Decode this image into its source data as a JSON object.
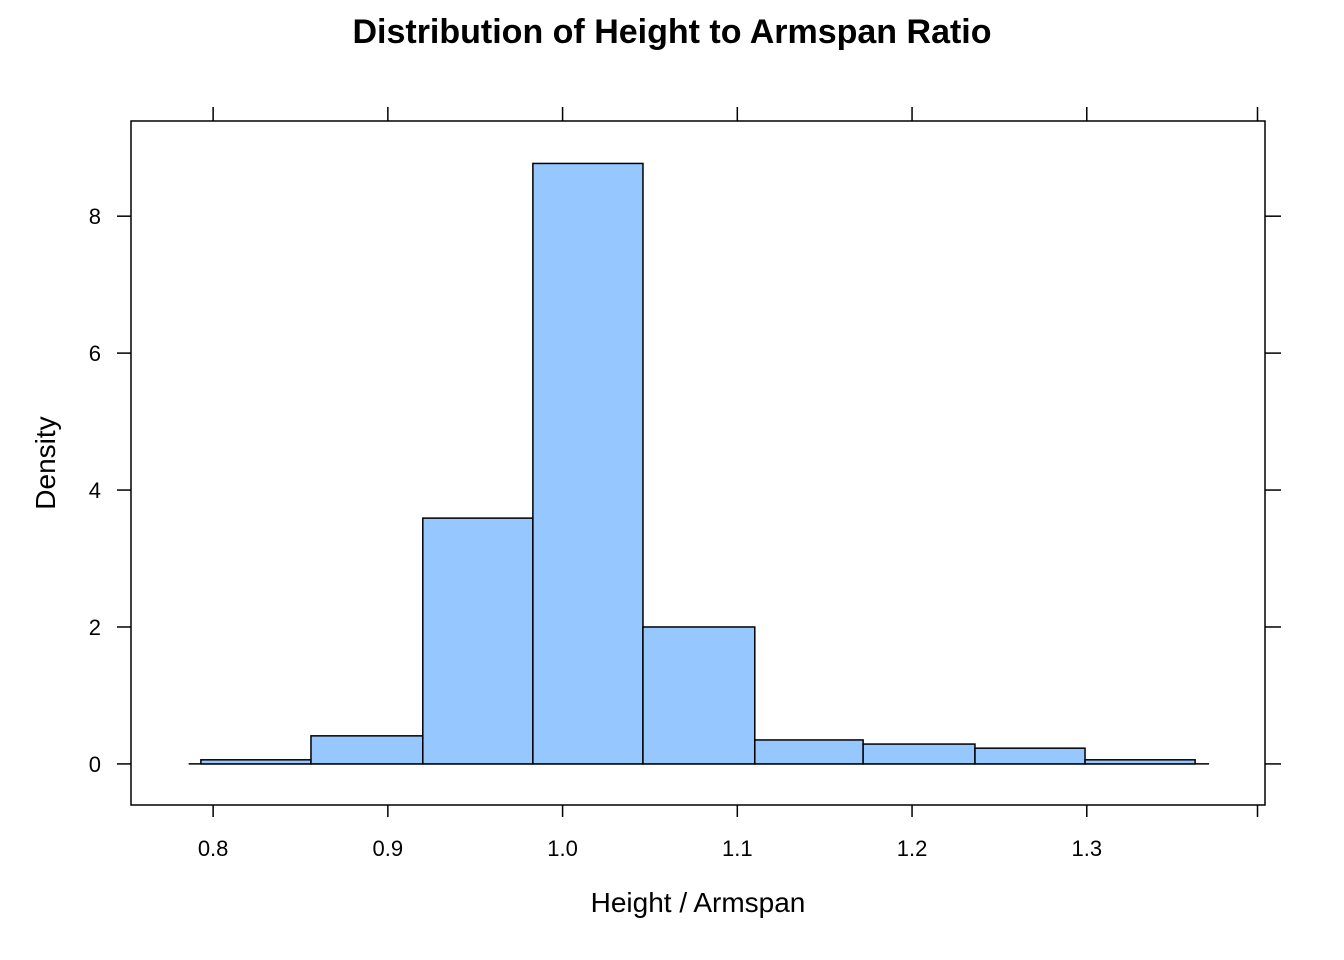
{
  "chart_data": {
    "type": "bar",
    "subtype": "histogram",
    "title": "Distribution of Height to Armspan Ratio",
    "xlabel": "Height / Armspan",
    "ylabel": "Density",
    "xlim": [
      0.753,
      1.402
    ],
    "ylim": [
      -0.6,
      9.39
    ],
    "xticks": [
      0.8,
      0.9,
      1.0,
      1.1,
      1.2,
      1.3
    ],
    "xtick_labels": [
      "0.8",
      "0.9",
      "1.0",
      "1.1",
      "1.2",
      "1.3"
    ],
    "yticks": [
      0,
      2,
      4,
      6,
      8
    ],
    "ytick_labels": [
      "0",
      "2",
      "4",
      "6",
      "8"
    ],
    "bin_edges": [
      0.793,
      0.856,
      0.92,
      0.983,
      1.046,
      1.11,
      1.172,
      1.236,
      1.299,
      1.362
    ],
    "values": [
      0.06,
      0.41,
      3.59,
      8.77,
      2.0,
      0.35,
      0.29,
      0.23,
      0.06
    ],
    "baseline_range": [
      0.786,
      1.37
    ],
    "grid": false,
    "legend": "none",
    "colors": {
      "fill": "#96C8FF",
      "stroke": "#000000"
    }
  }
}
